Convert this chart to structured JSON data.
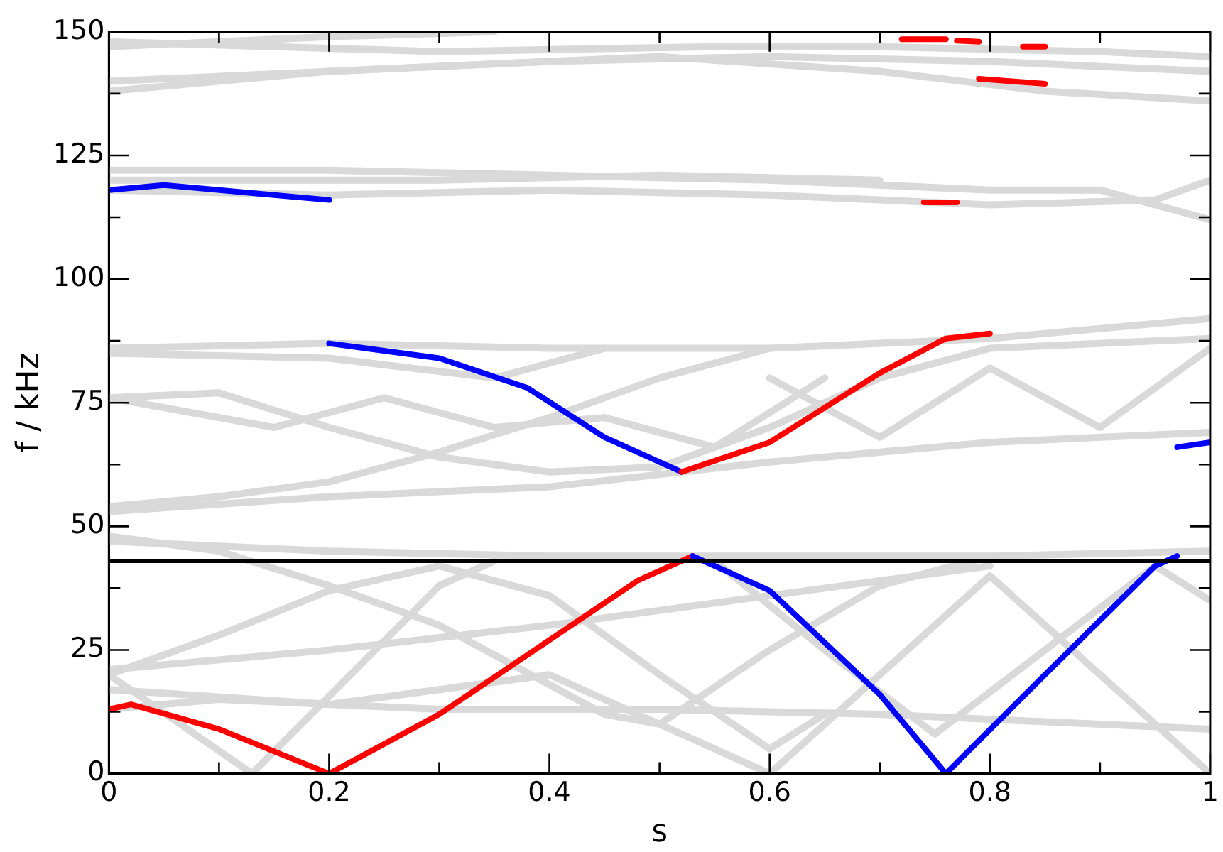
{
  "chart_data": {
    "type": "line",
    "xlabel": "s",
    "ylabel": "f / kHz",
    "xlim": [
      0,
      1
    ],
    "ylim": [
      0,
      150
    ],
    "xticks": [
      0,
      {
        "value": 0.1,
        "label": null
      },
      0.2,
      {
        "value": 0.3,
        "label": null
      },
      0.4,
      {
        "value": 0.5,
        "label": null
      },
      0.6,
      {
        "value": 0.7,
        "label": null
      },
      0.8,
      {
        "value": 0.9,
        "label": null
      },
      1
    ],
    "yticks": [
      0,
      {
        "value": 12.5,
        "label": null
      },
      25,
      {
        "value": 37.5,
        "label": null
      },
      50,
      {
        "value": 62.5,
        "label": null
      },
      75,
      {
        "value": 87.5,
        "label": null
      },
      100,
      {
        "value": 112.5,
        "label": null
      },
      125,
      {
        "value": 137.5,
        "label": null
      },
      150
    ],
    "grid": false,
    "legend": false,
    "marker": "none",
    "line_style": "solid",
    "ref_lines": [
      {
        "axis": "y",
        "value": 43,
        "color": "#000000"
      }
    ],
    "series": [
      {
        "color": "#d9d9d9",
        "x": [
          0,
          0.2,
          0.4,
          0.6,
          0.8,
          1
        ],
        "values": [
          47,
          45,
          44,
          44,
          44,
          45
        ]
      },
      {
        "color": "#d9d9d9",
        "x": [
          0,
          0.1,
          0.2,
          0.3,
          0.45,
          0.5,
          0.6,
          0.7,
          0.8
        ],
        "values": [
          48,
          45,
          38,
          30,
          12,
          10,
          25,
          38,
          44
        ]
      },
      {
        "color": "#d9d9d9",
        "x": [
          0,
          0.1,
          0.2,
          0.3,
          0.4,
          0.5,
          0.6,
          0.65
        ],
        "values": [
          20,
          28,
          37,
          42,
          36,
          20,
          5,
          12
        ]
      },
      {
        "color": "#d9d9d9",
        "x": [
          0,
          0.13,
          0.3,
          0.35
        ],
        "values": [
          20,
          0,
          38,
          43
        ]
      },
      {
        "color": "#d9d9d9",
        "x": [
          0,
          0.1,
          0.3,
          0.5,
          0.7,
          0.9,
          1
        ],
        "values": [
          13,
          15,
          13,
          13,
          12,
          10,
          9
        ]
      },
      {
        "color": "#d9d9d9",
        "x": [
          0,
          0.2,
          0.4,
          0.6,
          0.8
        ],
        "values": [
          21,
          25,
          30,
          36,
          42
        ]
      },
      {
        "color": "#d9d9d9",
        "x": [
          0,
          0.2,
          0.4,
          0.5,
          0.6
        ],
        "values": [
          17,
          14,
          20,
          10,
          0
        ]
      },
      {
        "color": "#d9d9d9",
        "x": [
          0.6,
          0.7,
          0.8,
          0.9,
          1
        ],
        "values": [
          0,
          20,
          40,
          20,
          0
        ]
      },
      {
        "color": "#d9d9d9",
        "x": [
          0.55,
          0.65,
          0.75,
          0.85,
          0.95,
          1
        ],
        "values": [
          43,
          25,
          8,
          25,
          42,
          35
        ]
      },
      {
        "color": "#d9d9d9",
        "x": [
          0,
          0.2,
          0.4,
          0.6,
          0.8,
          1
        ],
        "values": [
          86,
          87,
          86,
          86,
          88,
          92
        ]
      },
      {
        "color": "#d9d9d9",
        "x": [
          0,
          0.2,
          0.35,
          0.45
        ],
        "values": [
          85,
          84,
          80,
          86
        ]
      },
      {
        "color": "#d9d9d9",
        "x": [
          0,
          0.1,
          0.2,
          0.3,
          0.4,
          0.5,
          0.6,
          0.7,
          0.8,
          1
        ],
        "values": [
          76,
          77,
          70,
          64,
          61,
          62,
          70,
          80,
          86,
          88
        ]
      },
      {
        "color": "#d9d9d9",
        "x": [
          0,
          0.1,
          0.2,
          0.3,
          0.4,
          0.5,
          0.6
        ],
        "values": [
          54,
          56,
          59,
          65,
          72,
          80,
          86
        ]
      },
      {
        "color": "#d9d9d9",
        "x": [
          0,
          0.2,
          0.4,
          0.6,
          0.8,
          1
        ],
        "values": [
          53,
          56,
          58,
          63,
          67,
          69
        ]
      },
      {
        "color": "#d9d9d9",
        "x": [
          0,
          0.15,
          0.25,
          0.35,
          0.45,
          0.55,
          0.65
        ],
        "values": [
          76,
          70,
          76,
          70,
          72,
          66,
          80
        ]
      },
      {
        "color": "#d9d9d9",
        "x": [
          0.6,
          0.7,
          0.8,
          0.9,
          1
        ],
        "values": [
          80,
          68,
          82,
          70,
          86
        ]
      },
      {
        "color": "#d9d9d9",
        "x": [
          0,
          0.2,
          0.4,
          0.6,
          0.8,
          0.9,
          1
        ],
        "values": [
          122,
          122,
          121,
          120,
          118,
          118,
          112
        ]
      },
      {
        "color": "#d9d9d9",
        "x": [
          0,
          0.2,
          0.4,
          0.6,
          0.8,
          0.95,
          1
        ],
        "values": [
          118,
          117,
          118,
          117,
          115,
          116,
          120
        ]
      },
      {
        "color": "#d9d9d9",
        "x": [
          0,
          0.3,
          0.5,
          0.7
        ],
        "values": [
          120,
          120,
          121,
          120
        ]
      },
      {
        "color": "#d9d9d9",
        "x": [
          0,
          0.2,
          0.4,
          0.6,
          0.8,
          1
        ],
        "values": [
          138,
          142,
          144,
          145,
          144,
          142
        ]
      },
      {
        "color": "#d9d9d9",
        "x": [
          0,
          0.3,
          0.5,
          0.7,
          0.85,
          1
        ],
        "values": [
          140,
          143,
          145,
          142,
          138,
          136
        ]
      },
      {
        "color": "#d9d9d9",
        "x": [
          0,
          0.2,
          0.35
        ],
        "values": [
          147,
          149,
          150
        ]
      },
      {
        "color": "#d9d9d9",
        "x": [
          0,
          0.3,
          0.55,
          0.7,
          0.9,
          1
        ],
        "values": [
          148,
          146,
          147,
          147,
          146,
          145
        ]
      },
      {
        "color": "#ff0000",
        "x": [
          0,
          0.02,
          0.1,
          0.2,
          0.3,
          0.4,
          0.48,
          0.53
        ],
        "values": [
          13,
          14,
          9,
          0,
          12,
          27,
          39,
          44
        ]
      },
      {
        "color": "#0000ff",
        "x": [
          0.53,
          0.6,
          0.7,
          0.76,
          0.85,
          0.95,
          0.97
        ],
        "values": [
          44,
          37,
          16,
          0,
          20,
          42,
          44
        ]
      },
      {
        "color": "#0000ff",
        "x": [
          0.2,
          0.3,
          0.38,
          0.45,
          0.52
        ],
        "values": [
          87,
          84,
          78,
          68,
          61
        ]
      },
      {
        "color": "#ff0000",
        "x": [
          0.52,
          0.6,
          0.7,
          0.76,
          0.8
        ],
        "values": [
          61,
          67,
          81,
          88,
          89
        ]
      },
      {
        "color": "#0000ff",
        "x": [
          0.97,
          1
        ],
        "values": [
          66,
          67
        ]
      },
      {
        "color": "#0000ff",
        "x": [
          0,
          0.05,
          0.15,
          0.2
        ],
        "values": [
          118,
          119,
          117,
          116
        ]
      },
      {
        "color": "#ff0000",
        "x": [
          0.74,
          0.77
        ],
        "values": [
          115.5,
          115.5
        ]
      },
      {
        "color": "#ff0000",
        "x": [
          0.72,
          0.76
        ],
        "values": [
          148.5,
          148.5
        ]
      },
      {
        "color": "#ff0000",
        "x": [
          0.77,
          0.79
        ],
        "values": [
          148.2,
          148
        ]
      },
      {
        "color": "#ff0000",
        "x": [
          0.83,
          0.85
        ],
        "values": [
          147,
          147
        ]
      },
      {
        "color": "#ff0000",
        "x": [
          0.79,
          0.85
        ],
        "values": [
          140.5,
          139.5
        ]
      }
    ]
  }
}
